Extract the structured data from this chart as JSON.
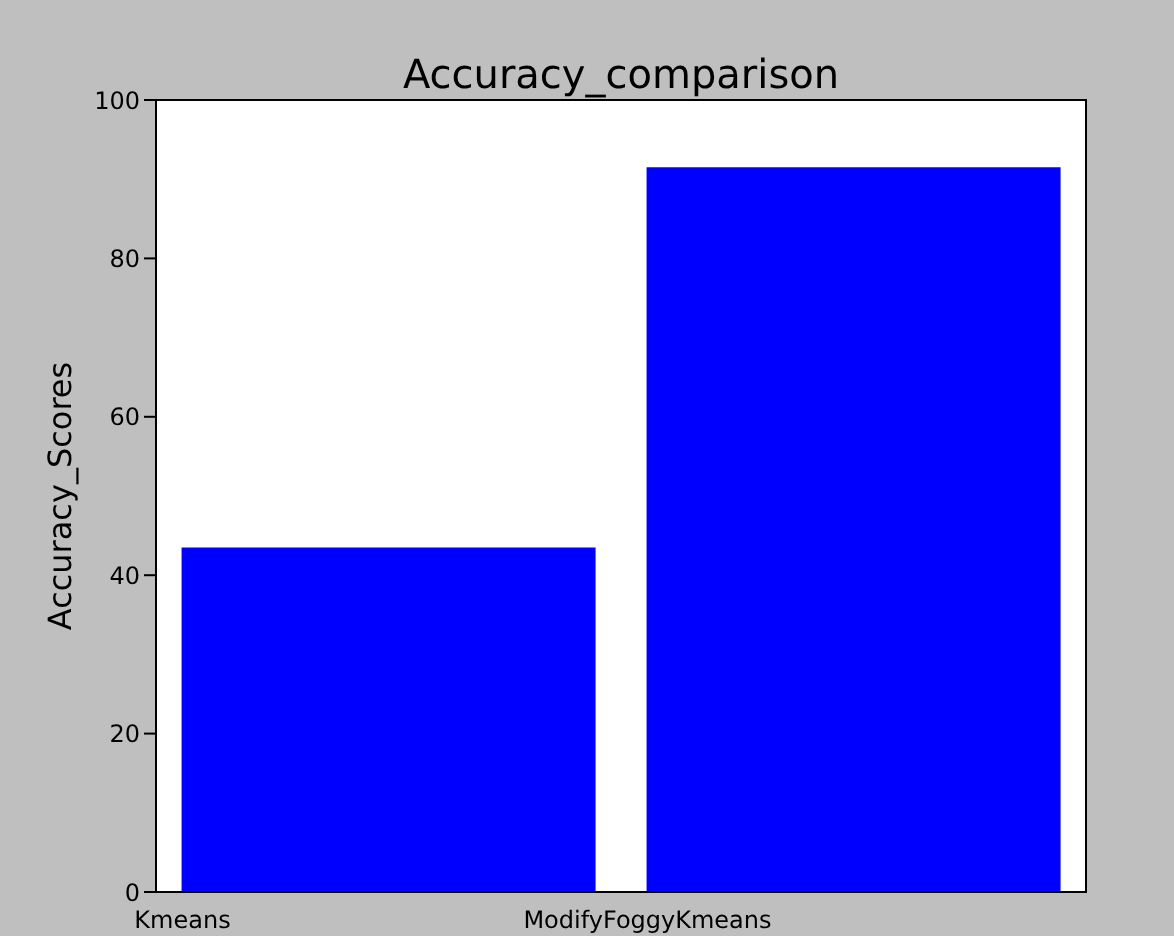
{
  "chart_data": {
    "type": "bar",
    "title": "Accuracy_comparison",
    "ylabel": "Accuracy_Scores",
    "categories": [
      "Kmeans",
      "ModifyFoggyKmeans"
    ],
    "values": [
      43.5,
      91.5
    ],
    "color": "#0000ff",
    "ylim": [
      0,
      100
    ],
    "yticks": [
      0,
      20,
      40,
      60,
      80,
      100
    ]
  }
}
